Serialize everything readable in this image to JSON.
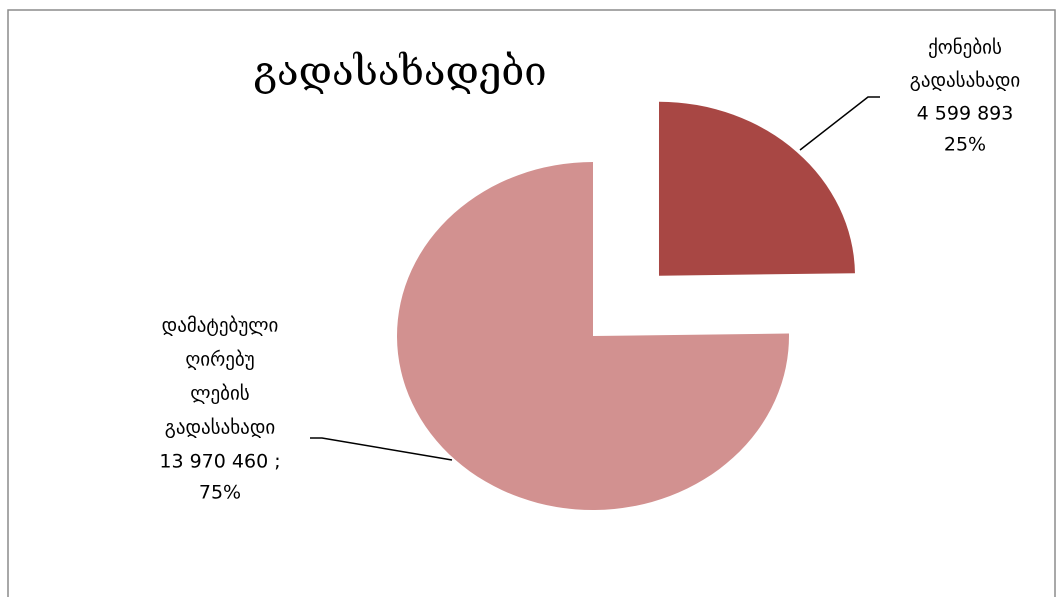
{
  "chart_data": {
    "type": "pie",
    "title": "გადასახადები",
    "categories": [
      [
        "ქონების",
        "გადასახადი"
      ],
      [
        "დამატებული",
        "ღირებუ",
        "ლების",
        "გადასახადი"
      ]
    ],
    "values": [
      4599893,
      13970460
    ],
    "value_labels": [
      "4 599 893",
      "13 970 460 ;"
    ],
    "percent_labels": [
      "25%",
      "75%"
    ],
    "colors": [
      "#a84744",
      "#d29190"
    ],
    "exploded": [
      true,
      false
    ]
  }
}
